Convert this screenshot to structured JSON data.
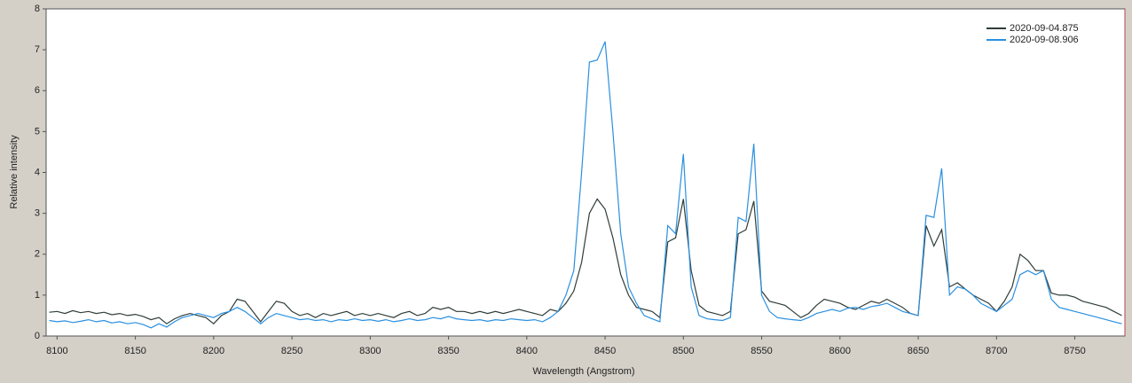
{
  "chart_data": {
    "type": "line",
    "x_label": "Wavelength (Angstrom)",
    "y_label": "Relative intensity",
    "xlim": [
      8093,
      8782
    ],
    "ylim": [
      0,
      8
    ],
    "xticks": [
      8100,
      8150,
      8200,
      8250,
      8300,
      8350,
      8400,
      8450,
      8500,
      8550,
      8600,
      8650,
      8700,
      8750
    ],
    "yticks": [
      0,
      1,
      2,
      3,
      4,
      5,
      6,
      7,
      8
    ],
    "legend": "upper right",
    "x": [
      8095,
      8100,
      8105,
      8110,
      8115,
      8120,
      8125,
      8130,
      8135,
      8140,
      8145,
      8150,
      8155,
      8160,
      8165,
      8170,
      8175,
      8180,
      8185,
      8190,
      8195,
      8200,
      8205,
      8210,
      8215,
      8220,
      8225,
      8230,
      8235,
      8240,
      8245,
      8250,
      8255,
      8260,
      8265,
      8270,
      8275,
      8280,
      8285,
      8290,
      8295,
      8300,
      8305,
      8310,
      8315,
      8320,
      8325,
      8330,
      8335,
      8340,
      8345,
      8350,
      8355,
      8360,
      8365,
      8370,
      8375,
      8380,
      8385,
      8390,
      8395,
      8400,
      8405,
      8410,
      8415,
      8420,
      8425,
      8430,
      8435,
      8440,
      8445,
      8450,
      8455,
      8460,
      8465,
      8470,
      8475,
      8480,
      8485,
      8490,
      8495,
      8500,
      8505,
      8510,
      8515,
      8520,
      8525,
      8530,
      8535,
      8540,
      8545,
      8550,
      8555,
      8560,
      8565,
      8570,
      8575,
      8580,
      8585,
      8590,
      8595,
      8600,
      8605,
      8610,
      8615,
      8620,
      8625,
      8630,
      8635,
      8640,
      8645,
      8650,
      8655,
      8660,
      8665,
      8670,
      8675,
      8680,
      8685,
      8690,
      8695,
      8700,
      8705,
      8710,
      8715,
      8720,
      8725,
      8730,
      8735,
      8740,
      8745,
      8750,
      8755,
      8760,
      8765,
      8770,
      8775,
      8780
    ],
    "series": [
      {
        "name": "2020-09-04.875",
        "color": "#2f3d38",
        "values": [
          0.58,
          0.6,
          0.55,
          0.62,
          0.57,
          0.6,
          0.55,
          0.58,
          0.52,
          0.55,
          0.5,
          0.53,
          0.48,
          0.4,
          0.45,
          0.3,
          0.42,
          0.5,
          0.55,
          0.5,
          0.45,
          0.3,
          0.5,
          0.6,
          0.9,
          0.85,
          0.6,
          0.35,
          0.6,
          0.85,
          0.8,
          0.6,
          0.5,
          0.55,
          0.45,
          0.55,
          0.5,
          0.55,
          0.6,
          0.5,
          0.55,
          0.5,
          0.55,
          0.5,
          0.45,
          0.55,
          0.6,
          0.5,
          0.55,
          0.7,
          0.65,
          0.7,
          0.6,
          0.6,
          0.55,
          0.6,
          0.55,
          0.6,
          0.55,
          0.6,
          0.65,
          0.6,
          0.55,
          0.5,
          0.65,
          0.6,
          0.8,
          1.1,
          1.8,
          3.0,
          3.35,
          3.1,
          2.4,
          1.5,
          1.0,
          0.7,
          0.65,
          0.6,
          0.45,
          2.3,
          2.4,
          3.35,
          1.6,
          0.75,
          0.6,
          0.55,
          0.5,
          0.6,
          2.5,
          2.6,
          3.3,
          1.1,
          0.85,
          0.8,
          0.75,
          0.6,
          0.45,
          0.55,
          0.75,
          0.9,
          0.85,
          0.8,
          0.7,
          0.65,
          0.75,
          0.85,
          0.8,
          0.9,
          0.8,
          0.7,
          0.55,
          0.5,
          2.7,
          2.2,
          2.6,
          1.2,
          1.3,
          1.15,
          1.0,
          0.9,
          0.8,
          0.6,
          0.85,
          1.2,
          2.0,
          1.85,
          1.6,
          1.6,
          1.05,
          1.0,
          1.0,
          0.95,
          0.85,
          0.8,
          0.75,
          0.7,
          0.6,
          0.5
        ]
      },
      {
        "name": "2020-09-08.906",
        "color": "#2a90e0",
        "values": [
          0.38,
          0.35,
          0.37,
          0.33,
          0.36,
          0.4,
          0.35,
          0.38,
          0.32,
          0.35,
          0.3,
          0.33,
          0.28,
          0.2,
          0.3,
          0.22,
          0.35,
          0.45,
          0.5,
          0.55,
          0.5,
          0.45,
          0.55,
          0.6,
          0.7,
          0.6,
          0.45,
          0.3,
          0.45,
          0.55,
          0.5,
          0.45,
          0.4,
          0.42,
          0.38,
          0.4,
          0.35,
          0.4,
          0.38,
          0.42,
          0.38,
          0.4,
          0.36,
          0.4,
          0.35,
          0.38,
          0.42,
          0.38,
          0.4,
          0.45,
          0.42,
          0.48,
          0.42,
          0.4,
          0.38,
          0.4,
          0.36,
          0.4,
          0.38,
          0.42,
          0.4,
          0.38,
          0.4,
          0.35,
          0.45,
          0.6,
          1.0,
          1.6,
          4.0,
          6.7,
          6.75,
          7.2,
          5.0,
          2.5,
          1.2,
          0.8,
          0.5,
          0.42,
          0.35,
          2.7,
          2.5,
          4.45,
          1.2,
          0.5,
          0.42,
          0.4,
          0.38,
          0.45,
          2.9,
          2.8,
          4.7,
          1.0,
          0.6,
          0.45,
          0.42,
          0.4,
          0.38,
          0.45,
          0.55,
          0.6,
          0.65,
          0.6,
          0.68,
          0.7,
          0.65,
          0.72,
          0.75,
          0.8,
          0.7,
          0.6,
          0.55,
          0.5,
          2.95,
          2.9,
          4.1,
          1.0,
          1.2,
          1.15,
          1.0,
          0.8,
          0.7,
          0.6,
          0.75,
          0.9,
          1.5,
          1.6,
          1.5,
          1.6,
          0.9,
          0.7,
          0.65,
          0.6,
          0.55,
          0.5,
          0.45,
          0.4,
          0.35,
          0.3
        ]
      }
    ]
  }
}
